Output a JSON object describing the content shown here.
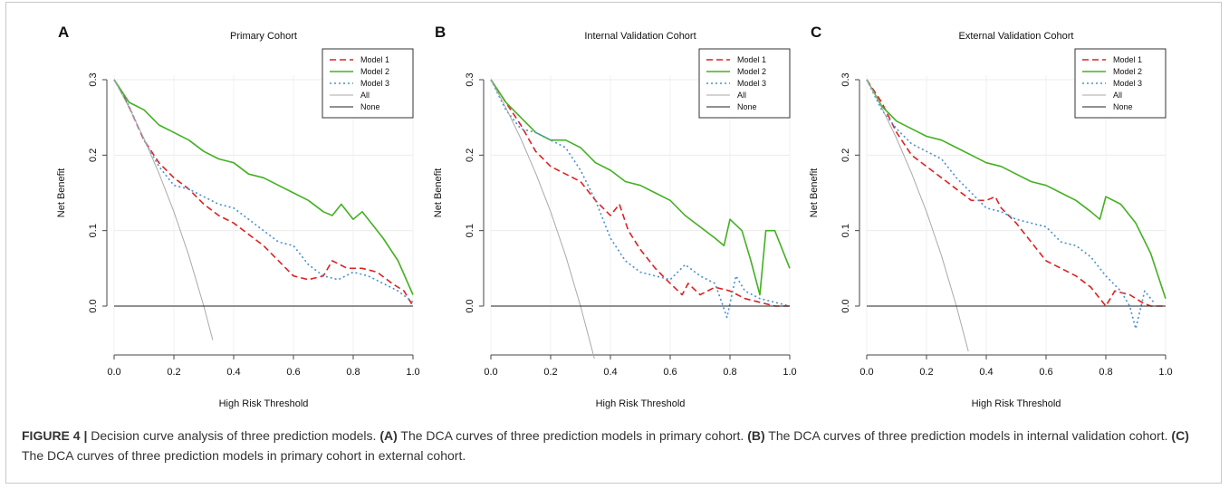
{
  "caption": {
    "figure_label": "FIGURE 4 |",
    "intro": " Decision curve analysis of three prediction models. ",
    "parts": [
      {
        "label": "(A)",
        "text": " The DCA curves of three prediction models in primary cohort. "
      },
      {
        "label": "(B)",
        "text": " The DCA curves of three prediction models in internal validation cohort. "
      },
      {
        "label": "(C)",
        "text": " The DCA curves of three prediction models in primary cohort in external cohort."
      }
    ]
  },
  "chart_data": [
    {
      "type": "line",
      "panel_letter": "A",
      "title": "Primary Cohort",
      "xlabel": "High Risk Threshold",
      "ylabel": "Net Benefit",
      "xlim": [
        0,
        1
      ],
      "ylim": [
        -0.065,
        0.3
      ],
      "x_ticks": [
        "0.0",
        "0.2",
        "0.4",
        "0.6",
        "0.8",
        "1.0"
      ],
      "y_ticks": [
        "0.0",
        "0.1",
        "0.2",
        "0.3"
      ],
      "grid": true,
      "legend_position": "top-right",
      "series": [
        {
          "name": "Model 1",
          "color": "#dd2222",
          "dash": "dashed",
          "x": [
            0,
            0.03,
            0.06,
            0.1,
            0.15,
            0.2,
            0.25,
            0.3,
            0.35,
            0.4,
            0.45,
            0.5,
            0.55,
            0.6,
            0.65,
            0.7,
            0.73,
            0.78,
            0.83,
            0.88,
            0.93,
            0.97,
            1.0
          ],
          "y": [
            0.3,
            0.28,
            0.255,
            0.22,
            0.19,
            0.17,
            0.155,
            0.135,
            0.12,
            0.11,
            0.095,
            0.08,
            0.06,
            0.04,
            0.035,
            0.04,
            0.06,
            0.05,
            0.05,
            0.045,
            0.03,
            0.02,
            0.0
          ]
        },
        {
          "name": "Model 2",
          "color": "#44b022",
          "dash": "solid",
          "x": [
            0,
            0.05,
            0.1,
            0.15,
            0.2,
            0.25,
            0.3,
            0.35,
            0.4,
            0.45,
            0.5,
            0.55,
            0.6,
            0.65,
            0.7,
            0.73,
            0.76,
            0.8,
            0.83,
            0.86,
            0.9,
            0.95,
            1.0
          ],
          "y": [
            0.3,
            0.27,
            0.26,
            0.24,
            0.23,
            0.22,
            0.205,
            0.195,
            0.19,
            0.175,
            0.17,
            0.16,
            0.15,
            0.14,
            0.125,
            0.12,
            0.135,
            0.115,
            0.125,
            0.11,
            0.09,
            0.06,
            0.015
          ]
        },
        {
          "name": "Model 3",
          "color": "#4a90d0",
          "dash": "dotted",
          "x": [
            0,
            0.05,
            0.1,
            0.15,
            0.2,
            0.25,
            0.3,
            0.35,
            0.4,
            0.45,
            0.5,
            0.55,
            0.6,
            0.65,
            0.7,
            0.75,
            0.8,
            0.85,
            0.9,
            0.95,
            1.0
          ],
          "y": [
            0.3,
            0.265,
            0.22,
            0.185,
            0.16,
            0.155,
            0.145,
            0.135,
            0.13,
            0.115,
            0.1,
            0.085,
            0.08,
            0.055,
            0.04,
            0.035,
            0.045,
            0.04,
            0.03,
            0.02,
            0.005
          ]
        },
        {
          "name": "All",
          "color": "#aaaaaa",
          "dash": "solid",
          "x": [
            0,
            0.05,
            0.1,
            0.15,
            0.2,
            0.25,
            0.3,
            0.33
          ],
          "y": [
            0.3,
            0.263,
            0.222,
            0.176,
            0.125,
            0.067,
            0.0,
            -0.045
          ]
        },
        {
          "name": "None",
          "color": "#222222",
          "dash": "solid",
          "x": [
            0,
            1.0
          ],
          "y": [
            0,
            0
          ]
        }
      ]
    },
    {
      "type": "line",
      "panel_letter": "B",
      "title": "Internal Validation Cohort",
      "xlabel": "High Risk Threshold",
      "ylabel": "Net Benefit",
      "xlim": [
        0,
        1
      ],
      "ylim": [
        -0.065,
        0.3
      ],
      "x_ticks": [
        "0.0",
        "0.2",
        "0.4",
        "0.6",
        "0.8",
        "1.0"
      ],
      "y_ticks": [
        "0.0",
        "0.1",
        "0.2",
        "0.3"
      ],
      "grid": true,
      "legend_position": "top-right",
      "series": [
        {
          "name": "Model 1",
          "color": "#dd2222",
          "dash": "dashed",
          "x": [
            0,
            0.05,
            0.1,
            0.15,
            0.2,
            0.25,
            0.3,
            0.35,
            0.4,
            0.43,
            0.46,
            0.5,
            0.55,
            0.6,
            0.64,
            0.66,
            0.7,
            0.75,
            0.8,
            0.85,
            0.9,
            0.95,
            1.0
          ],
          "y": [
            0.3,
            0.27,
            0.24,
            0.205,
            0.185,
            0.175,
            0.165,
            0.14,
            0.12,
            0.135,
            0.1,
            0.075,
            0.05,
            0.03,
            0.015,
            0.03,
            0.015,
            0.025,
            0.02,
            0.01,
            0.005,
            0.0,
            0.0
          ]
        },
        {
          "name": "Model 2",
          "color": "#44b022",
          "dash": "solid",
          "x": [
            0,
            0.05,
            0.1,
            0.15,
            0.2,
            0.25,
            0.3,
            0.35,
            0.4,
            0.45,
            0.5,
            0.55,
            0.6,
            0.65,
            0.7,
            0.75,
            0.78,
            0.8,
            0.84,
            0.87,
            0.9,
            0.92,
            0.95,
            1.0
          ],
          "y": [
            0.3,
            0.27,
            0.25,
            0.23,
            0.22,
            0.22,
            0.21,
            0.19,
            0.18,
            0.165,
            0.16,
            0.15,
            0.14,
            0.12,
            0.105,
            0.09,
            0.08,
            0.115,
            0.1,
            0.06,
            0.015,
            0.1,
            0.1,
            0.05
          ]
        },
        {
          "name": "Model 3",
          "color": "#4a90d0",
          "dash": "dotted",
          "x": [
            0,
            0.05,
            0.1,
            0.15,
            0.2,
            0.25,
            0.3,
            0.35,
            0.4,
            0.45,
            0.5,
            0.55,
            0.6,
            0.65,
            0.7,
            0.75,
            0.79,
            0.82,
            0.85,
            0.9,
            0.95,
            1.0
          ],
          "y": [
            0.3,
            0.26,
            0.235,
            0.23,
            0.22,
            0.21,
            0.18,
            0.14,
            0.09,
            0.06,
            0.045,
            0.04,
            0.035,
            0.055,
            0.04,
            0.03,
            -0.015,
            0.04,
            0.02,
            0.01,
            0.005,
            0.0
          ]
        },
        {
          "name": "All",
          "color": "#aaaaaa",
          "dash": "solid",
          "x": [
            0,
            0.05,
            0.1,
            0.15,
            0.2,
            0.25,
            0.3,
            0.35
          ],
          "y": [
            0.3,
            0.263,
            0.222,
            0.176,
            0.125,
            0.067,
            0.0,
            -0.075
          ]
        },
        {
          "name": "None",
          "color": "#222222",
          "dash": "solid",
          "x": [
            0,
            1.0
          ],
          "y": [
            0,
            0
          ]
        }
      ]
    },
    {
      "type": "line",
      "panel_letter": "C",
      "title": "External Validation Cohort",
      "xlabel": "High Risk Threshold",
      "ylabel": "Net Benefit",
      "xlim": [
        0,
        1
      ],
      "ylim": [
        -0.065,
        0.3
      ],
      "x_ticks": [
        "0.0",
        "0.2",
        "0.4",
        "0.6",
        "0.8",
        "1.0"
      ],
      "y_ticks": [
        "0.0",
        "0.1",
        "0.2",
        "0.3"
      ],
      "grid": true,
      "legend_position": "top-right",
      "series": [
        {
          "name": "Model 1",
          "color": "#dd2222",
          "dash": "dashed",
          "x": [
            0,
            0.05,
            0.1,
            0.15,
            0.2,
            0.25,
            0.3,
            0.35,
            0.4,
            0.43,
            0.45,
            0.5,
            0.55,
            0.6,
            0.65,
            0.7,
            0.75,
            0.8,
            0.83,
            0.88,
            0.92,
            0.95,
            1.0
          ],
          "y": [
            0.3,
            0.27,
            0.23,
            0.2,
            0.185,
            0.17,
            0.155,
            0.14,
            0.14,
            0.145,
            0.13,
            0.11,
            0.085,
            0.06,
            0.05,
            0.04,
            0.025,
            0.0,
            0.02,
            0.015,
            0.005,
            0.0,
            0.0
          ]
        },
        {
          "name": "Model 2",
          "color": "#44b022",
          "dash": "solid",
          "x": [
            0,
            0.05,
            0.1,
            0.15,
            0.2,
            0.25,
            0.3,
            0.35,
            0.4,
            0.45,
            0.5,
            0.55,
            0.6,
            0.65,
            0.7,
            0.75,
            0.78,
            0.8,
            0.85,
            0.9,
            0.95,
            1.0
          ],
          "y": [
            0.3,
            0.265,
            0.245,
            0.235,
            0.225,
            0.22,
            0.21,
            0.2,
            0.19,
            0.185,
            0.175,
            0.165,
            0.16,
            0.15,
            0.14,
            0.125,
            0.115,
            0.145,
            0.135,
            0.11,
            0.07,
            0.01
          ]
        },
        {
          "name": "Model 3",
          "color": "#4a90d0",
          "dash": "dotted",
          "x": [
            0,
            0.05,
            0.1,
            0.15,
            0.2,
            0.25,
            0.3,
            0.35,
            0.4,
            0.45,
            0.5,
            0.55,
            0.6,
            0.65,
            0.7,
            0.75,
            0.8,
            0.85,
            0.88,
            0.9,
            0.93,
            0.96
          ],
          "y": [
            0.3,
            0.26,
            0.235,
            0.215,
            0.205,
            0.195,
            0.17,
            0.15,
            0.13,
            0.125,
            0.115,
            0.11,
            0.105,
            0.085,
            0.08,
            0.065,
            0.04,
            0.02,
            0.0,
            -0.03,
            0.02,
            0.005
          ]
        },
        {
          "name": "All",
          "color": "#aaaaaa",
          "dash": "solid",
          "x": [
            0,
            0.05,
            0.1,
            0.15,
            0.2,
            0.25,
            0.3,
            0.34
          ],
          "y": [
            0.3,
            0.263,
            0.222,
            0.176,
            0.125,
            0.067,
            0.0,
            -0.06
          ]
        },
        {
          "name": "None",
          "color": "#222222",
          "dash": "solid",
          "x": [
            0,
            1.0
          ],
          "y": [
            0,
            0
          ]
        }
      ]
    }
  ]
}
